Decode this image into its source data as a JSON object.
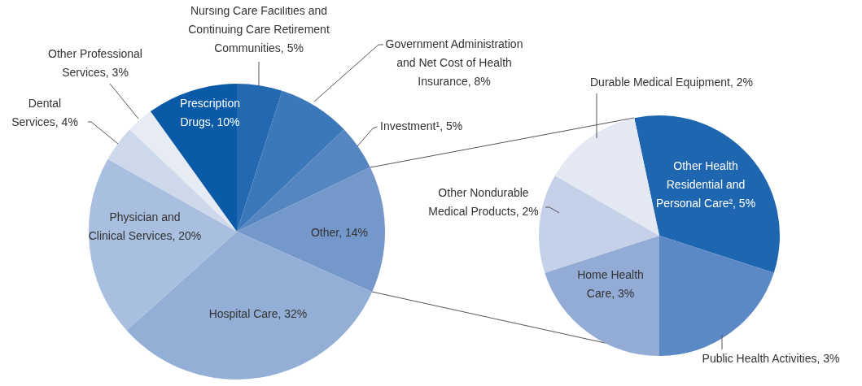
{
  "chart_data": [
    {
      "type": "pie",
      "categories": [
        "Nursing Care Facilities and Continuing Care Retirement Communities",
        "Government Administration and Net Cost of Health Insurance",
        "Investment¹",
        "Other",
        "Hospital Care",
        "Physician and Clinical Services",
        "Dental Services",
        "Other Professional Services",
        "Prescription Drugs"
      ],
      "values": [
        5,
        8,
        5,
        14,
        32,
        20,
        4,
        3,
        10
      ],
      "value_labels": [
        "5%",
        "8%",
        "5%",
        "14%",
        "32%",
        "20%",
        "4%",
        "3%",
        "10%"
      ],
      "colors": [
        "#2468b0",
        "#3a78ba",
        "#5586c2",
        "#7598cb",
        "#94afd6",
        "#a9bfdf",
        "#cdd8eb",
        "#e6ebf4",
        "#0a5aa8"
      ]
    },
    {
      "type": "pie",
      "categories": [
        "Other Health Residential and Personal Care²",
        "Public Health Activities",
        "Home Health Care",
        "Other Nondurable Medical Products",
        "Durable Medical Equipment"
      ],
      "values": [
        5,
        3,
        3,
        2,
        2
      ],
      "value_labels": [
        "5%",
        "3%",
        "3%",
        "2%",
        "2%"
      ],
      "colors": [
        "#1f66b0",
        "#5b89c5",
        "#93acd5",
        "#c4d1e8",
        "#e3e8f2"
      ]
    }
  ]
}
